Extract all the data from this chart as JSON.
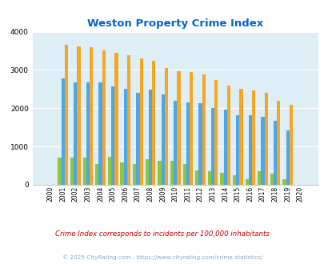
{
  "title": "Weston Property Crime Index",
  "years": [
    2000,
    2001,
    2002,
    2003,
    2004,
    2005,
    2006,
    2007,
    2008,
    2009,
    2010,
    2011,
    2012,
    2013,
    2014,
    2015,
    2016,
    2017,
    2018,
    2019,
    2020
  ],
  "weston": [
    0,
    720,
    720,
    720,
    550,
    740,
    580,
    540,
    660,
    620,
    630,
    540,
    380,
    360,
    320,
    250,
    140,
    360,
    290,
    150,
    0
  ],
  "connecticut": [
    0,
    2780,
    2670,
    2670,
    2670,
    2570,
    2510,
    2400,
    2490,
    2360,
    2190,
    2160,
    2130,
    2000,
    1960,
    1820,
    1820,
    1780,
    1670,
    1430,
    0
  ],
  "national": [
    0,
    3660,
    3620,
    3600,
    3510,
    3440,
    3380,
    3300,
    3230,
    3050,
    2970,
    2940,
    2890,
    2740,
    2600,
    2510,
    2460,
    2400,
    2190,
    2100,
    0
  ],
  "weston_color": "#8dc63f",
  "connecticut_color": "#4da6e8",
  "national_color": "#f5a623",
  "bg_color": "#ddeef6",
  "ylim": [
    0,
    4000
  ],
  "yticks": [
    0,
    1000,
    2000,
    3000,
    4000
  ],
  "subtitle": "Crime Index corresponds to incidents per 100,000 inhabitants",
  "footer": "© 2025 CityRating.com - https://www.cityrating.com/crime-statistics/",
  "title_color": "#0066cc",
  "subtitle_color": "#cc0000",
  "footer_color": "#88aacc"
}
